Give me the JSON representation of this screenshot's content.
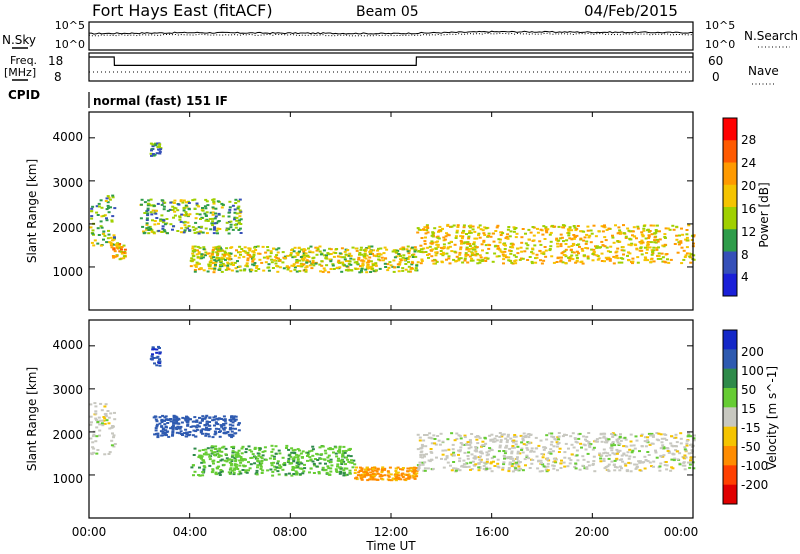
{
  "header": {
    "radar": "Fort Hays East (fitACF)",
    "beam": "Beam 05",
    "date": "04/Feb/2015"
  },
  "top_panels": {
    "nsky_label": "N.Sky",
    "nsky_ticks": [
      "10^5",
      "10^0"
    ],
    "nsearch_label": "N.Search",
    "nsearch_ticks": [
      "10^5",
      "10^0"
    ],
    "freq_label": "Freq.",
    "freq_unit": "[MHz]",
    "freq_ticks": [
      "18",
      "8"
    ],
    "nave_label": "Nave",
    "nave_ticks": [
      "60",
      "0"
    ],
    "cpid_label": "CPID",
    "cpid_value": "normal (fast) 151 IF"
  },
  "x_axis": {
    "title": "Time UT",
    "ticks": [
      "00:00",
      "04:00",
      "08:00",
      "12:00",
      "16:00",
      "20:00",
      "00:00"
    ]
  },
  "power_panel": {
    "ylabel": "Slant Range [km]",
    "yticks": [
      "4000",
      "3000",
      "2000",
      "1000"
    ],
    "colorbar_label": "Power [dB]",
    "colorbar_ticks": [
      "28",
      "24",
      "20",
      "16",
      "12",
      "8",
      "4"
    ],
    "colors": [
      "#ff0000",
      "#ff5a00",
      "#ff9a00",
      "#f5c400",
      "#a0d000",
      "#2e9c4a",
      "#3650b8",
      "#1a20d8"
    ]
  },
  "velocity_panel": {
    "ylabel": "Slant Range [km]",
    "yticks": [
      "4000",
      "3000",
      "2000",
      "1000"
    ],
    "colorbar_label": "Velocity [m s^-1]",
    "colorbar_ticks": [
      "200",
      "100",
      "50",
      "15",
      "-15",
      "-50",
      "-100",
      "-200"
    ],
    "colors": [
      "#1428c8",
      "#2e5ab0",
      "#2e8a4a",
      "#66cc33",
      "#c8c8c0",
      "#f5c400",
      "#ff8c00",
      "#ff4000",
      "#e00000"
    ]
  },
  "chart_data": [
    {
      "type": "line",
      "title": "N.Sky / N.Search",
      "x": [
        "00:00",
        "04:00",
        "08:00",
        "12:00",
        "16:00",
        "20:00",
        "00:00"
      ],
      "series": [
        {
          "name": "N.Sky",
          "values": [
            3,
            3.2,
            3.1,
            3.0,
            3.4,
            3.3,
            3.2
          ]
        },
        {
          "name": "N.Search",
          "values": [
            2.6,
            2.8,
            2.7,
            2.6,
            3.0,
            2.9,
            2.8
          ]
        }
      ],
      "yscale": "log",
      "ylim": [
        0,
        5
      ]
    },
    {
      "type": "line",
      "title": "Freq. [MHz] / Nave",
      "x_hours": [
        0,
        1,
        1.01,
        13,
        13.01,
        24
      ],
      "series": [
        {
          "name": "Freq.",
          "values": [
            18,
            18,
            14,
            14,
            18,
            18
          ]
        },
        {
          "name": "Nave",
          "values": [
            9,
            9,
            9,
            9,
            9,
            9
          ]
        }
      ],
      "ylim": [
        8,
        18
      ]
    },
    {
      "type": "heatmap",
      "ylabel": "Slant Range [km]",
      "xlabel": "Time UT",
      "quantity": "Power [dB]",
      "xlim_hours": [
        0,
        24
      ],
      "ylim": [
        0,
        4600
      ],
      "colorbar_range": [
        0,
        32
      ],
      "scatter_bands": [
        {
          "t_start": 0.0,
          "t_end": 1.0,
          "r_low": 1500,
          "r_high": 2700,
          "level": 14
        },
        {
          "t_start": 0.8,
          "t_end": 1.4,
          "r_low": 1200,
          "r_high": 1600,
          "level": 22
        },
        {
          "t_start": 2.4,
          "t_end": 2.8,
          "r_low": 3600,
          "r_high": 3900,
          "level": 12
        },
        {
          "t_start": 2.0,
          "t_end": 6.0,
          "r_low": 1800,
          "r_high": 2600,
          "level": 14
        },
        {
          "t_start": 4.0,
          "t_end": 13.0,
          "r_low": 900,
          "r_high": 1500,
          "level": 18
        },
        {
          "t_start": 13.0,
          "t_end": 24.0,
          "r_low": 1100,
          "r_high": 2000,
          "level": 20
        }
      ]
    },
    {
      "type": "heatmap",
      "ylabel": "Slant Range [km]",
      "xlabel": "Time UT",
      "quantity": "Velocity [m s^-1]",
      "xlim_hours": [
        0,
        24
      ],
      "ylim": [
        0,
        4600
      ],
      "colorbar_range": [
        -200,
        200
      ],
      "scatter_bands": [
        {
          "t_start": 0.0,
          "t_end": 1.0,
          "r_low": 1500,
          "r_high": 2700,
          "level": 0
        },
        {
          "t_start": 2.4,
          "t_end": 2.8,
          "r_low": 3500,
          "r_high": 4000,
          "level": 200
        },
        {
          "t_start": 2.5,
          "t_end": 6.0,
          "r_low": 1900,
          "r_high": 2400,
          "level": 120
        },
        {
          "t_start": 4.0,
          "t_end": 10.5,
          "r_low": 1000,
          "r_high": 1700,
          "level": 40
        },
        {
          "t_start": 10.5,
          "t_end": 13.0,
          "r_low": 900,
          "r_high": 1200,
          "level": -60
        },
        {
          "t_start": 13.0,
          "t_end": 24.0,
          "r_low": 1100,
          "r_high": 2000,
          "level": 0
        }
      ]
    }
  ]
}
